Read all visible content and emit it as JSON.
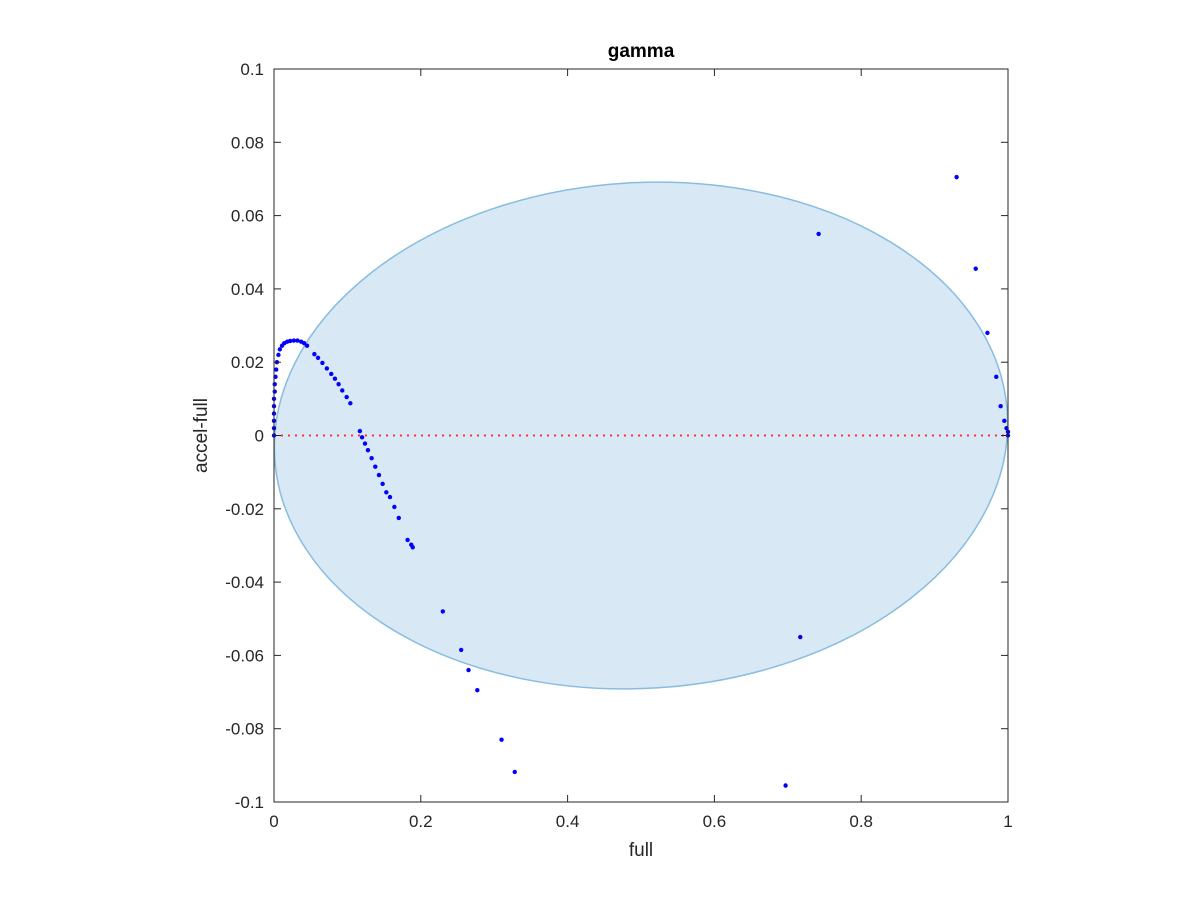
{
  "chart_data": {
    "type": "scatter",
    "title": "gamma",
    "xlabel": "full",
    "ylabel": "accel-full",
    "xlim": [
      0,
      1
    ],
    "ylim": [
      -0.1,
      0.1
    ],
    "x_ticks": [
      0,
      0.2,
      0.4,
      0.6,
      0.8,
      1
    ],
    "x_tick_labels": [
      "0",
      "0.2",
      "0.4",
      "0.6",
      "0.8",
      "1"
    ],
    "y_ticks": [
      -0.1,
      -0.08,
      -0.06,
      -0.04,
      -0.02,
      0,
      0.02,
      0.04,
      0.06,
      0.08,
      0.1
    ],
    "y_tick_labels": [
      "-0.1",
      "-0.08",
      "-0.06",
      "-0.04",
      "-0.02",
      "0",
      "0.02",
      "0.04",
      "0.06",
      "0.08",
      "0.1"
    ],
    "grid": false,
    "box": true,
    "ellipse": {
      "center": [
        0.5,
        0.0
      ],
      "semi_x": 0.5,
      "semi_y": 0.069,
      "rotation_deg": -3.5,
      "fill": "#d8e8f4",
      "edge": "#87bde0"
    },
    "reference_line": {
      "y": 0,
      "style": "dotted",
      "color": "#ff3333"
    },
    "marker_color": "#0000ff",
    "points": [
      [
        0.0,
        0.0
      ],
      [
        0.0,
        0.002
      ],
      [
        0.0,
        0.004
      ],
      [
        0.0,
        0.006
      ],
      [
        0.0,
        0.008
      ],
      [
        0.0,
        0.01
      ],
      [
        0.001,
        0.012
      ],
      [
        0.001,
        0.014
      ],
      [
        0.002,
        0.016
      ],
      [
        0.003,
        0.018
      ],
      [
        0.004,
        0.02
      ],
      [
        0.006,
        0.022
      ],
      [
        0.008,
        0.0235
      ],
      [
        0.011,
        0.0245
      ],
      [
        0.014,
        0.0252
      ],
      [
        0.018,
        0.0256
      ],
      [
        0.022,
        0.0258
      ],
      [
        0.027,
        0.0259
      ],
      [
        0.032,
        0.0259
      ],
      [
        0.037,
        0.0256
      ],
      [
        0.041,
        0.0252
      ],
      [
        0.045,
        0.0245
      ],
      [
        0.055,
        0.0222
      ],
      [
        0.06,
        0.0212
      ],
      [
        0.066,
        0.0198
      ],
      [
        0.072,
        0.0183
      ],
      [
        0.078,
        0.0168
      ],
      [
        0.083,
        0.0155
      ],
      [
        0.088,
        0.014
      ],
      [
        0.093,
        0.0123
      ],
      [
        0.099,
        0.0105
      ],
      [
        0.104,
        0.0088
      ],
      [
        0.117,
        0.0012
      ],
      [
        0.12,
        -0.0005
      ],
      [
        0.124,
        -0.0022
      ],
      [
        0.128,
        -0.004
      ],
      [
        0.133,
        -0.0062
      ],
      [
        0.138,
        -0.0085
      ],
      [
        0.143,
        -0.0108
      ],
      [
        0.148,
        -0.0132
      ],
      [
        0.153,
        -0.0155
      ],
      [
        0.158,
        -0.0168
      ],
      [
        0.164,
        -0.0195
      ],
      [
        0.17,
        -0.0225
      ],
      [
        0.182,
        -0.0285
      ],
      [
        0.187,
        -0.0298
      ],
      [
        0.189,
        -0.0305
      ],
      [
        0.23,
        -0.048
      ],
      [
        0.255,
        -0.0585
      ],
      [
        0.265,
        -0.064
      ],
      [
        0.277,
        -0.0695
      ],
      [
        0.31,
        -0.083
      ],
      [
        0.328,
        -0.0918
      ],
      [
        0.697,
        -0.0955
      ],
      [
        0.717,
        -0.055
      ],
      [
        0.742,
        0.055
      ],
      [
        0.93,
        0.0705
      ],
      [
        0.956,
        0.0455
      ],
      [
        0.972,
        0.028
      ],
      [
        0.984,
        0.016
      ],
      [
        0.99,
        0.008
      ],
      [
        0.995,
        0.004
      ],
      [
        0.998,
        0.002
      ],
      [
        1.0,
        0.001
      ],
      [
        1.0,
        0.0
      ]
    ]
  }
}
